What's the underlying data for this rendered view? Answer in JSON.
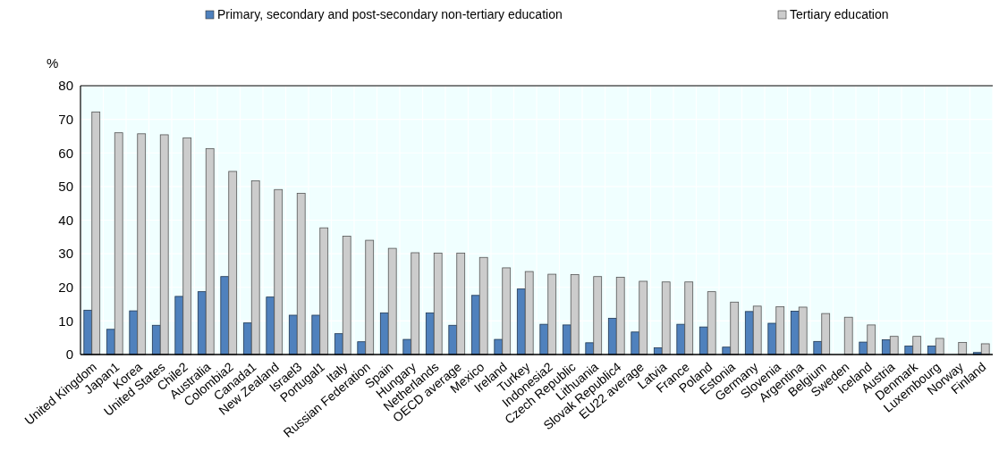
{
  "chart_data": {
    "type": "bar",
    "ylabel": "%",
    "categories": [
      "United Kingdom",
      "Japan1",
      "Korea",
      "United States",
      "Chile2",
      "Australia",
      "Colombia2",
      "Canada1",
      "New Zealand",
      "Israel3",
      "Portugal1",
      "Italy",
      "Russian Federation",
      "Spain",
      "Hungary",
      "Netherlands",
      "OECD average",
      "Mexico",
      "Ireland",
      "Turkey",
      "Indonesia2",
      "Czech Republic",
      "Lithuania",
      "Slovak Republic4",
      "EU22 average",
      "Latvia",
      "France",
      "Poland",
      "Estonia",
      "Germany",
      "Slovenia",
      "Argentina",
      "Belgium",
      "Sweden",
      "Iceland",
      "Austria",
      "Denmark",
      "Luxembourg",
      "Norway",
      "Finland"
    ],
    "series": [
      {
        "name": "Primary, secondary and post-secondary non-tertiary education",
        "color": "#4f81bd",
        "values": [
          13.2,
          7.5,
          13,
          8.7,
          17.3,
          18.7,
          23.2,
          9.4,
          17.1,
          11.7,
          11.7,
          6.2,
          3.8,
          12.4,
          4.5,
          12.4,
          8.7,
          17.6,
          4.5,
          19.5,
          9,
          8.8,
          3.5,
          10.8,
          6.7,
          2,
          9,
          8.2,
          2.2,
          12.8,
          9.3,
          12.9,
          3.9,
          null,
          3.7,
          4.4,
          2.5,
          2.5,
          null,
          0.6
        ]
      },
      {
        "name": "Tertiary education",
        "color": "#cccccc",
        "values": [
          72.2,
          66,
          65.7,
          65.4,
          64.5,
          61.3,
          54.5,
          51.7,
          49.1,
          48,
          37.7,
          35.2,
          34,
          31.6,
          30.3,
          30.2,
          30.2,
          28.9,
          25.8,
          24.7,
          23.9,
          23.8,
          23.2,
          23,
          21.8,
          21.6,
          21.6,
          18.7,
          15.6,
          14.4,
          14.2,
          14.1,
          12.2,
          11.1,
          8.8,
          5.4,
          5.4,
          4.8,
          3.6,
          3.2
        ]
      }
    ],
    "ylim": [
      0,
      80
    ],
    "yticks": [
      0,
      10,
      20,
      30,
      40,
      50,
      60,
      70,
      80
    ],
    "grid": true,
    "legend": "top"
  }
}
